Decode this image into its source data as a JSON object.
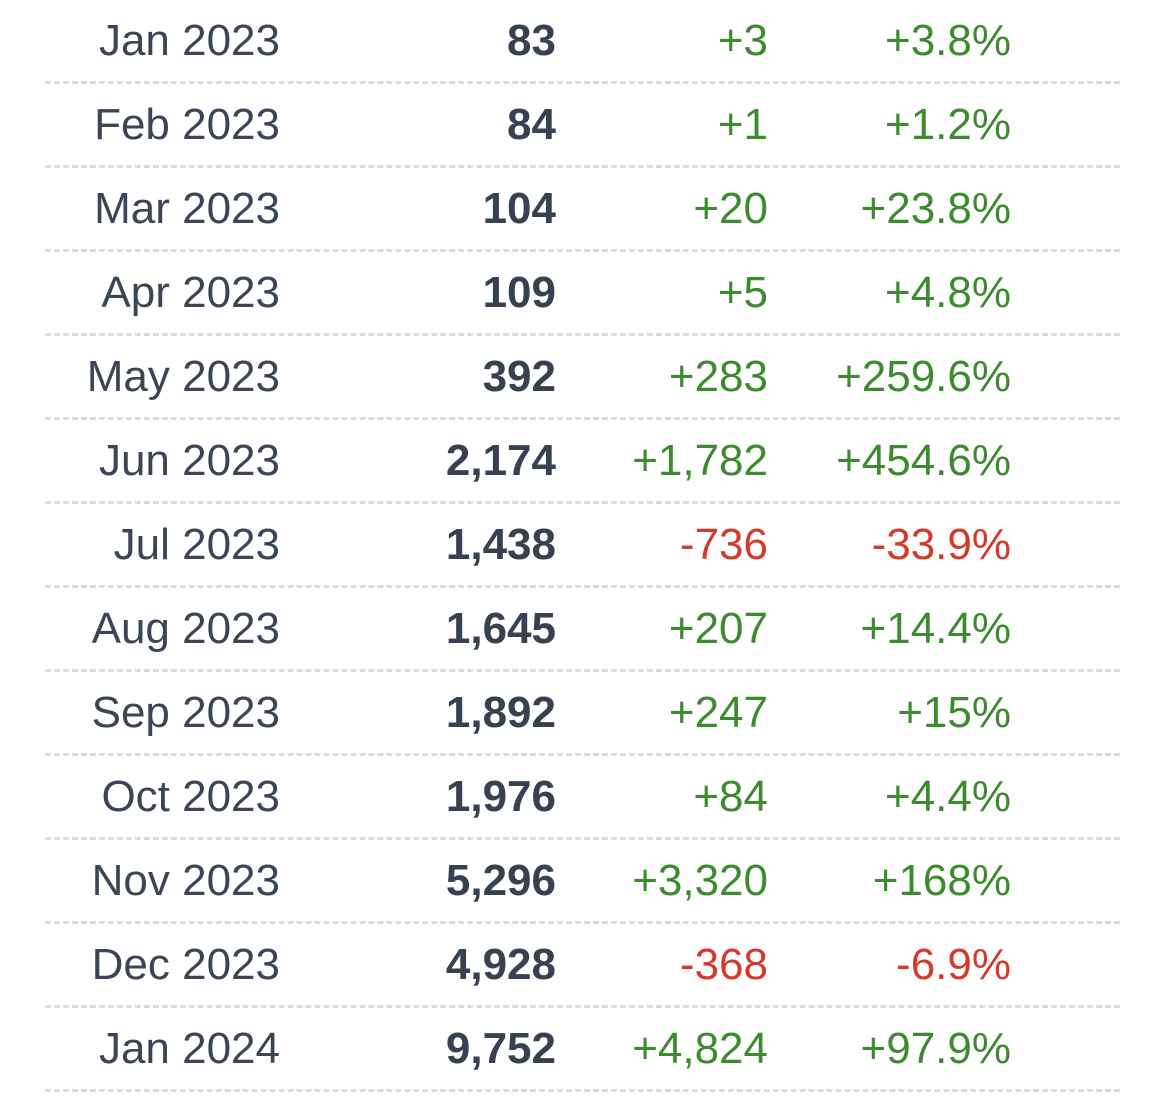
{
  "colors": {
    "positive": "#3d8b2f",
    "negative": "#d6392c",
    "text": "#3b4556",
    "divider": "#d9dde3"
  },
  "rows": [
    {
      "month": "Jan 2023",
      "total": "83",
      "change": "+3",
      "percent": "+3.8%",
      "direction": "positive"
    },
    {
      "month": "Feb 2023",
      "total": "84",
      "change": "+1",
      "percent": "+1.2%",
      "direction": "positive"
    },
    {
      "month": "Mar 2023",
      "total": "104",
      "change": "+20",
      "percent": "+23.8%",
      "direction": "positive"
    },
    {
      "month": "Apr 2023",
      "total": "109",
      "change": "+5",
      "percent": "+4.8%",
      "direction": "positive"
    },
    {
      "month": "May 2023",
      "total": "392",
      "change": "+283",
      "percent": "+259.6%",
      "direction": "positive"
    },
    {
      "month": "Jun 2023",
      "total": "2,174",
      "change": "+1,782",
      "percent": "+454.6%",
      "direction": "positive"
    },
    {
      "month": "Jul 2023",
      "total": "1,438",
      "change": "-736",
      "percent": "-33.9%",
      "direction": "negative"
    },
    {
      "month": "Aug 2023",
      "total": "1,645",
      "change": "+207",
      "percent": "+14.4%",
      "direction": "positive"
    },
    {
      "month": "Sep 2023",
      "total": "1,892",
      "change": "+247",
      "percent": "+15%",
      "direction": "positive"
    },
    {
      "month": "Oct 2023",
      "total": "1,976",
      "change": "+84",
      "percent": "+4.4%",
      "direction": "positive"
    },
    {
      "month": "Nov 2023",
      "total": "5,296",
      "change": "+3,320",
      "percent": "+168%",
      "direction": "positive"
    },
    {
      "month": "Dec 2023",
      "total": "4,928",
      "change": "-368",
      "percent": "-6.9%",
      "direction": "negative"
    },
    {
      "month": "Jan 2024",
      "total": "9,752",
      "change": "+4,824",
      "percent": "+97.9%",
      "direction": "positive"
    }
  ]
}
